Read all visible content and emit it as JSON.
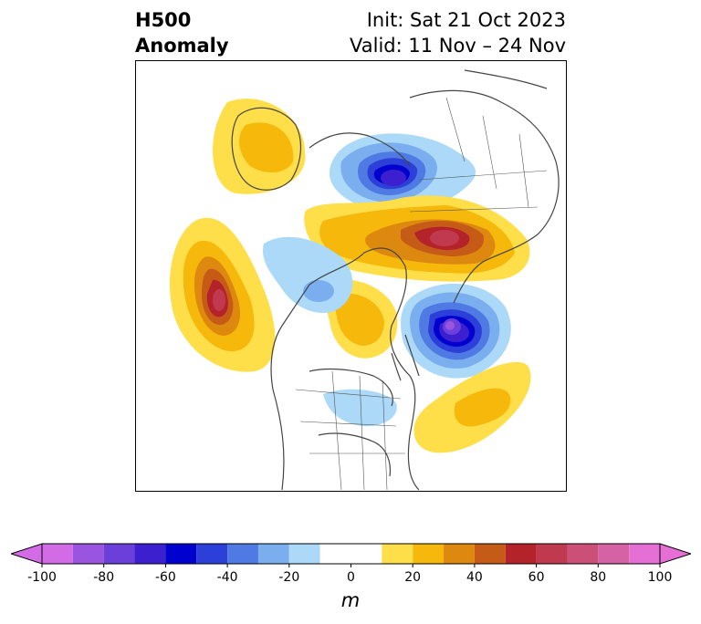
{
  "title": {
    "left_line1": "H500",
    "left_line2": "Anomaly",
    "right_line1": "Init: Sat 21 Oct 2023",
    "right_line2": "Valid: 11 Nov – 24 Nov"
  },
  "map": {
    "field": "500 hPa geopotential height anomaly",
    "features": [
      {
        "name": "anomaly-positive-greenland",
        "sign": "positive",
        "peak": 30
      },
      {
        "name": "anomaly-negative-arctic",
        "sign": "negative",
        "peak": -60
      },
      {
        "name": "anomaly-positive-siberia",
        "sign": "positive",
        "peak": 70
      },
      {
        "name": "anomaly-positive-canada-west",
        "sign": "positive",
        "peak": 40
      },
      {
        "name": "anomaly-positive-northeast-pacific",
        "sign": "positive",
        "peak": 70
      },
      {
        "name": "anomaly-negative-bering",
        "sign": "negative",
        "peak": -30
      },
      {
        "name": "anomaly-positive-alaska",
        "sign": "positive",
        "peak": 30
      },
      {
        "name": "anomaly-negative-east-asia",
        "sign": "negative",
        "peak": -90
      },
      {
        "name": "anomaly-positive-northwest-pacific",
        "sign": "positive",
        "peak": 30
      },
      {
        "name": "anomaly-negative-eastern-us",
        "sign": "negative",
        "peak": -20
      }
    ]
  },
  "colorbar": {
    "unit": "m",
    "ticks": [
      "-100",
      "-80",
      "-60",
      "-40",
      "-20",
      "0",
      "20",
      "40",
      "60",
      "80",
      "100"
    ],
    "levels": [
      -100,
      -90,
      -80,
      -70,
      -60,
      -50,
      -40,
      -30,
      -20,
      -10,
      10,
      20,
      30,
      40,
      50,
      60,
      70,
      80,
      90,
      100
    ],
    "extend": "both",
    "colors": {
      "under": "#d46be6",
      "bins": [
        "#d46be6",
        "#9a55e0",
        "#6b3fd9",
        "#3c1fcf",
        "#0000cf",
        "#2d3fd9",
        "#4f7ae3",
        "#7aaeef",
        "#abd9f7",
        "#ffffff",
        "#fedf4a",
        "#f5b80b",
        "#dd880e",
        "#c65b17",
        "#b4232a",
        "#c1394e",
        "#cb4f77",
        "#d462a4",
        "#e66fd6"
      ],
      "over": "#e66fd6"
    }
  }
}
